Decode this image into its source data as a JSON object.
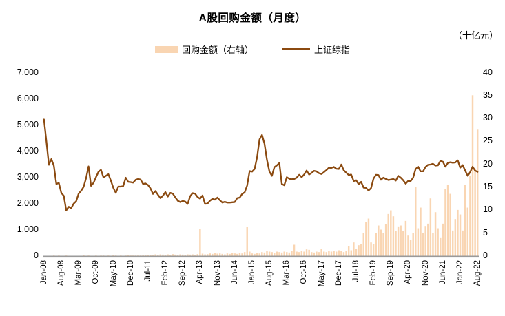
{
  "header": {
    "title": "A股回购金额（月度）",
    "unit_label": "（十亿元）"
  },
  "legend": [
    {
      "label": "回购金额（右轴）",
      "type": "bar",
      "color": "#F9D5B2"
    },
    {
      "label": "上证综指",
      "type": "line",
      "color": "#8B4A10"
    }
  ],
  "chart_data": {
    "type": "bar+line combo, monthly",
    "title": "A股回购金额（月度）",
    "unit": "十亿元",
    "x_start": "Jan-08",
    "x_end": "Aug-22",
    "n_months": 176,
    "x_tick_labels": [
      "Jan-08",
      "Aug-08",
      "Mar-09",
      "Oct-09",
      "May-10",
      "Dec-10",
      "Jul-11",
      "Feb-12",
      "Sep-12",
      "Apr-13",
      "Nov-13",
      "Jun-14",
      "Jan-15",
      "Aug-15",
      "Mar-16",
      "Oct-16",
      "May-17",
      "Dec-17",
      "Jul-18",
      "Feb-19",
      "Sep-19",
      "Apr-20",
      "Nov-20",
      "Jun-21",
      "Jan-22",
      "Aug-22"
    ],
    "x_tick_month_step": 7,
    "left_axis": {
      "series": "上证综指",
      "min": 0,
      "max": 7000,
      "step": 1000,
      "tick_labels": [
        "0",
        "1,000",
        "2,000",
        "3,000",
        "4,000",
        "5,000",
        "6,000",
        "7,000"
      ]
    },
    "right_axis": {
      "series": "回购金额",
      "min": 0,
      "max": 40,
      "step": 5,
      "tick_labels": [
        "0",
        "5",
        "10",
        "15",
        "20",
        "25",
        "30",
        "35",
        "40"
      ]
    },
    "grid": "off",
    "legend_position": "top-center",
    "colors": {
      "bar": "#F9D5B2",
      "line": "#8B4A10",
      "axis_line": "#9A9A9A",
      "text": "#000000"
    },
    "series": [
      {
        "name": "回购金额（右轴）",
        "type": "bar",
        "axis": "right",
        "values": [
          0,
          0,
          0,
          0,
          0.05,
          0,
          0.05,
          0,
          0,
          0.05,
          0,
          0,
          0,
          0,
          0,
          0,
          0.15,
          0,
          0.05,
          0,
          0,
          0.05,
          0,
          0.05,
          0.05,
          0,
          0.05,
          0,
          0.1,
          0.05,
          0,
          0.05,
          0,
          0.05,
          0.1,
          0.05,
          0.05,
          0.05,
          0.1,
          0.05,
          0.1,
          0.15,
          0.1,
          0.2,
          0.15,
          0.3,
          0.2,
          0.3,
          0.25,
          0.15,
          0.3,
          0.2,
          0.35,
          0.25,
          0.2,
          0.3,
          0.25,
          0.2,
          0.3,
          0.25,
          0.3,
          0.2,
          0.35,
          5.9,
          0.45,
          0.3,
          0.35,
          0.5,
          0.4,
          0.6,
          0.45,
          0.5,
          0.4,
          0.3,
          0.5,
          0.4,
          0.6,
          0.5,
          0.4,
          0.6,
          0.5,
          0.8,
          6.3,
          0.9,
          0.5,
          0.4,
          0.6,
          0.5,
          0.8,
          0.7,
          1.0,
          0.9,
          0.8,
          0.6,
          0.9,
          0.8,
          0.7,
          0.9,
          0.8,
          0.7,
          1.1,
          2.4,
          0.9,
          0.8,
          1.0,
          0.9,
          1.4,
          1.3,
          0.8,
          0.7,
          0.9,
          0.8,
          1.5,
          0.9,
          0.8,
          1.0,
          0.9,
          1.1,
          0.9,
          1.2,
          1.0,
          0.8,
          1.1,
          2.1,
          1.2,
          2.9,
          1.5,
          2.3,
          2.5,
          5.0,
          7.4,
          8.1,
          2.9,
          2.5,
          4.9,
          6.6,
          5.7,
          4.9,
          6.9,
          9.1,
          9.9,
          8.6,
          5.4,
          6.4,
          6.6,
          5.4,
          7.6,
          4.4,
          3.4,
          5.0,
          15.0,
          6.0,
          10.5,
          5.0,
          6.5,
          7.0,
          12.5,
          5.0,
          9.5,
          6.0,
          4.0,
          7.0,
          14.5,
          15.5,
          13.5,
          5.5,
          8.0,
          10.0,
          9.0,
          5.5,
          15.5,
          10.5,
          17.5,
          35.0,
          19.0,
          27.5
        ]
      },
      {
        "name": "上证综指",
        "type": "line",
        "axis": "left",
        "values": [
          5200,
          4350,
          3470,
          3690,
          3430,
          2740,
          2780,
          2400,
          2290,
          1730,
          1870,
          1820,
          1990,
          2080,
          2370,
          2480,
          2630,
          2960,
          3410,
          2670,
          2780,
          3000,
          3200,
          3280,
          2990,
          3050,
          3110,
          2870,
          2590,
          2400,
          2640,
          2640,
          2660,
          2980,
          2820,
          2810,
          2790,
          2900,
          2930,
          2910,
          2740,
          2760,
          2700,
          2570,
          2360,
          2470,
          2330,
          2200,
          2290,
          2430,
          2260,
          2400,
          2370,
          2230,
          2100,
          2050,
          2090,
          2070,
          1980,
          2270,
          2390,
          2370,
          2240,
          2180,
          2300,
          1980,
          1990,
          2100,
          2170,
          2140,
          2220,
          2120,
          2030,
          2060,
          2030,
          2030,
          2040,
          2050,
          2200,
          2220,
          2360,
          2420,
          2680,
          3230,
          3210,
          3310,
          3750,
          4440,
          4610,
          4280,
          3660,
          3210,
          3050,
          3380,
          3450,
          3540,
          2740,
          2690,
          3000,
          2940,
          2920,
          2930,
          2980,
          3090,
          3000,
          3100,
          3250,
          3100,
          3160,
          3240,
          3220,
          3150,
          3120,
          3190,
          3270,
          3360,
          3350,
          3390,
          3320,
          3310,
          3480,
          3260,
          3170,
          3080,
          3100,
          2850,
          2880,
          2730,
          2820,
          2600,
          2590,
          2490,
          2580,
          2940,
          3090,
          3080,
          2900,
          2980,
          2930,
          2890,
          2910,
          2930,
          2870,
          3050,
          2980,
          2880,
          2750,
          2860,
          2850,
          2980,
          3310,
          3400,
          3220,
          3220,
          3390,
          3470,
          3480,
          3510,
          3440,
          3450,
          3620,
          3590,
          3400,
          3540,
          3570,
          3550,
          3560,
          3640,
          3360,
          3460,
          3250,
          3050,
          3190,
          3400,
          3250,
          3200
        ]
      }
    ]
  }
}
